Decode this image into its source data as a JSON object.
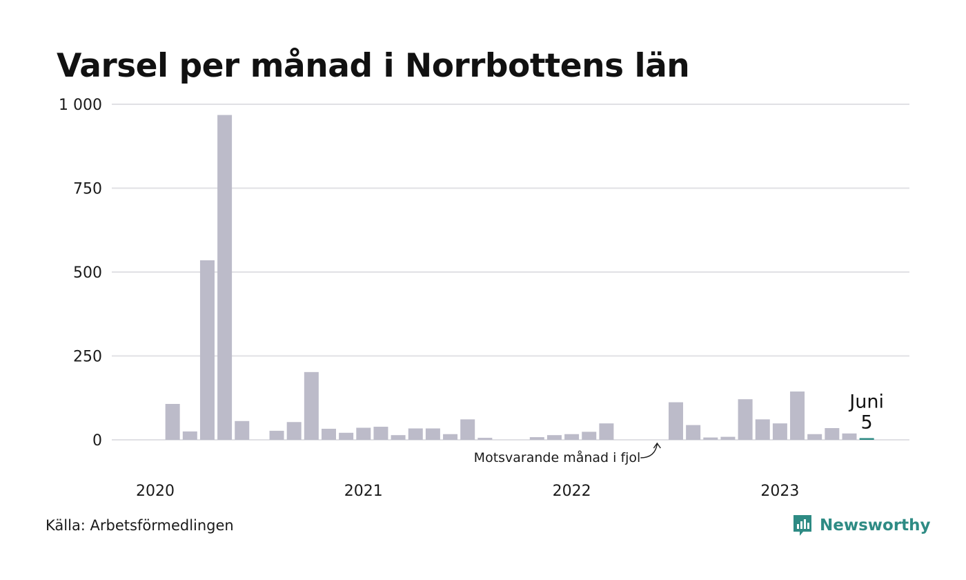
{
  "title": "Varsel per månad i Norrbottens län",
  "source": "Källa: Arbetsförmedlingen",
  "brand": {
    "name": "Newsworthy",
    "icon": "newsworthy-logo-icon",
    "color": "#2e8b84"
  },
  "colors": {
    "bar": "#bcbbc9",
    "comparison": "#454545",
    "current": "#2e8b84",
    "grid": "#e0e0e4"
  },
  "chart_data": {
    "type": "bar",
    "title": "Varsel per månad i Norrbottens län",
    "xlabel": "",
    "ylabel": "",
    "ylim": [
      0,
      1000
    ],
    "yticks": [
      0,
      250,
      500,
      750,
      1000
    ],
    "ytick_labels": [
      "0",
      "250",
      "500",
      "750",
      "1 000"
    ],
    "year_labels": [
      {
        "label": "2020",
        "month": "2020-01"
      },
      {
        "label": "2021",
        "month": "2021-01"
      },
      {
        "label": "2022",
        "month": "2022-01"
      },
      {
        "label": "2023",
        "month": "2023-01"
      }
    ],
    "grid": true,
    "legend": "none",
    "categories": [
      "2020-01",
      "2020-02",
      "2020-03",
      "2020-04",
      "2020-05",
      "2020-06",
      "2020-07",
      "2020-08",
      "2020-09",
      "2020-10",
      "2020-11",
      "2020-12",
      "2021-01",
      "2021-02",
      "2021-03",
      "2021-04",
      "2021-05",
      "2021-06",
      "2021-07",
      "2021-08",
      "2021-09",
      "2021-10",
      "2021-11",
      "2021-12",
      "2022-01",
      "2022-02",
      "2022-03",
      "2022-04",
      "2022-05",
      "2022-06",
      "2022-07",
      "2022-08",
      "2022-09",
      "2022-10",
      "2022-11",
      "2022-12",
      "2023-01",
      "2023-02",
      "2023-03",
      "2023-04",
      "2023-05",
      "2023-06"
    ],
    "values": [
      0,
      107,
      25,
      535,
      968,
      56,
      0,
      27,
      53,
      202,
      33,
      21,
      36,
      39,
      14,
      34,
      34,
      17,
      61,
      6,
      0,
      0,
      8,
      14,
      17,
      24,
      49,
      0,
      0,
      0,
      112,
      44,
      7,
      9,
      121,
      61,
      49,
      144,
      17,
      35,
      19,
      5
    ],
    "comparison_month": "2022-06",
    "highlight": {
      "month": "2023-06",
      "label": "Juni",
      "value": 5
    },
    "annotations": [
      {
        "text": "Motsvarande månad i fjol",
        "month": "2022-06"
      }
    ]
  }
}
